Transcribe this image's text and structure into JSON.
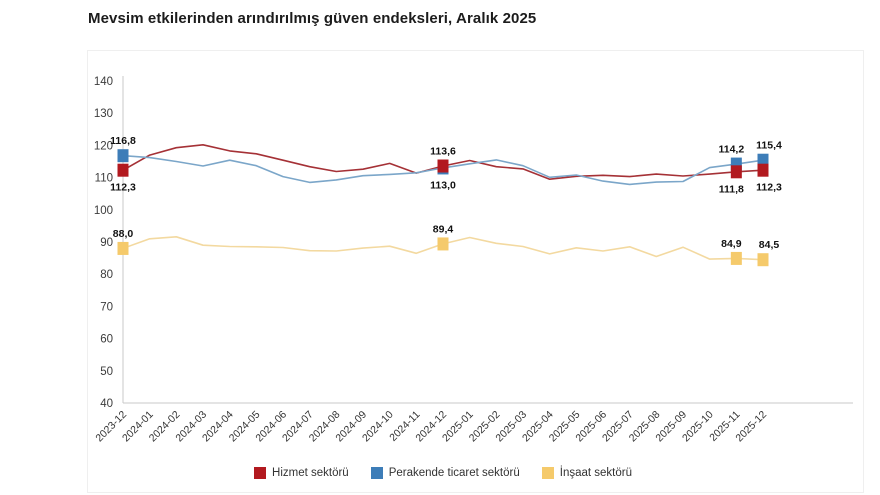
{
  "title": "Mevsim etkilerinden arındırılmış güven endeksleri, Aralık 2025",
  "colors": {
    "background": "#ffffff",
    "axis": "#c8c8c8",
    "tick_label": "#3c3c3c",
    "title": "#1c1c1c",
    "panel_border": "#efefef",
    "data_label": "#111111"
  },
  "chart_data": {
    "type": "line",
    "title": "Mevsim etkilerinden arındırılmış güven endeksleri, Aralık 2025",
    "xlabel": "",
    "ylabel": "",
    "ylim": [
      40,
      140
    ],
    "yticks": [
      40,
      50,
      60,
      70,
      80,
      90,
      100,
      110,
      120,
      130,
      140
    ],
    "grid": false,
    "legend_position": "bottom-center",
    "x": [
      "2023-12",
      "2024-01",
      "2024-02",
      "2024-03",
      "2024-04",
      "2024-05",
      "2024-06",
      "2024-07",
      "2024-08",
      "2024-09",
      "2024-10",
      "2024-11",
      "2024-12",
      "2025-01",
      "2025-02",
      "2025-03",
      "2025-04",
      "2025-05",
      "2025-06",
      "2025-07",
      "2025-08",
      "2025-09",
      "2025-10",
      "2025-11",
      "2025-12"
    ],
    "series": [
      {
        "key": "hizmet",
        "name": "Hizmet sektörü",
        "line_color": "#a53136",
        "marker_color": "#b2191f",
        "values": [
          112.3,
          117.0,
          119.3,
          120.2,
          118.3,
          117.4,
          115.4,
          113.4,
          111.9,
          112.6,
          114.4,
          111.4,
          113.6,
          115.3,
          113.4,
          112.7,
          109.5,
          110.4,
          110.7,
          110.3,
          111.1,
          110.5,
          111.1,
          111.8,
          112.3
        ]
      },
      {
        "key": "perakende",
        "name": "Perakende ticaret sektörü",
        "line_color": "#7ba6c9",
        "marker_color": "#3d7db8",
        "values": [
          116.8,
          116.2,
          115.0,
          113.6,
          115.4,
          113.7,
          110.3,
          108.5,
          109.3,
          110.6,
          111.0,
          111.5,
          113.0,
          114.3,
          115.5,
          113.7,
          110.1,
          110.8,
          108.9,
          107.9,
          108.6,
          108.8,
          113.1,
          114.2,
          115.4
        ]
      },
      {
        "key": "insaat",
        "name": "İnşaat sektörü",
        "line_color": "#f3d9a0",
        "marker_color": "#f5ca6b",
        "values": [
          88.0,
          91.0,
          91.6,
          89.0,
          88.6,
          88.5,
          88.3,
          87.3,
          87.2,
          88.1,
          88.7,
          86.5,
          89.4,
          91.4,
          89.6,
          88.6,
          86.3,
          88.2,
          87.2,
          88.5,
          85.5,
          88.4,
          84.7,
          84.9,
          84.5
        ]
      }
    ],
    "marker_indices": [
      0,
      12,
      23,
      24
    ],
    "annotations": [
      {
        "series": "perakende",
        "i": 0,
        "text": "116,8",
        "pos": "above"
      },
      {
        "series": "hizmet",
        "i": 0,
        "text": "112,3",
        "pos": "below"
      },
      {
        "series": "insaat",
        "i": 0,
        "text": "88,0",
        "pos": "above"
      },
      {
        "series": "hizmet",
        "i": 12,
        "text": "113,6",
        "pos": "above"
      },
      {
        "series": "perakende",
        "i": 12,
        "text": "113,0",
        "pos": "below"
      },
      {
        "series": "insaat",
        "i": 12,
        "text": "89,4",
        "pos": "above"
      },
      {
        "series": "perakende",
        "i": 23,
        "text": "114,2",
        "pos": "above"
      },
      {
        "series": "hizmet",
        "i": 23,
        "text": "111,8",
        "pos": "below"
      },
      {
        "series": "insaat",
        "i": 23,
        "text": "84,9",
        "pos": "above"
      },
      {
        "series": "perakende",
        "i": 24,
        "text": "115,4",
        "pos": "above"
      },
      {
        "series": "hizmet",
        "i": 24,
        "text": "112,3",
        "pos": "below"
      },
      {
        "series": "insaat",
        "i": 24,
        "text": "84,5",
        "pos": "above"
      }
    ]
  }
}
